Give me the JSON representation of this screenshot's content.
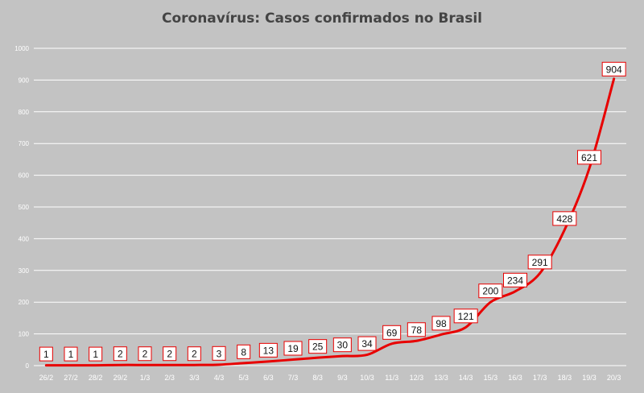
{
  "chart_data": {
    "type": "line",
    "title": "Coronavírus: Casos confirmados no Brasil",
    "xlabel": "",
    "ylabel": "",
    "categories": [
      "26/2",
      "27/2",
      "28/2",
      "29/2",
      "1/3",
      "2/3",
      "3/3",
      "4/3",
      "5/3",
      "6/3",
      "7/3",
      "8/3",
      "9/3",
      "10/3",
      "11/3",
      "12/3",
      "13/3",
      "14/3",
      "15/3",
      "16/3",
      "17/3",
      "18/3",
      "19/3",
      "20/3"
    ],
    "series": [
      {
        "values": [
          1,
          1,
          1,
          2,
          2,
          2,
          2,
          3,
          8,
          13,
          19,
          25,
          30,
          34,
          69,
          78,
          98,
          121,
          200,
          234,
          291,
          428,
          621,
          904
        ]
      }
    ],
    "ylim": [
      0,
      1000
    ],
    "yticks": [
      0,
      100,
      200,
      300,
      400,
      500,
      600,
      700,
      800,
      900,
      1000
    ],
    "grid": true,
    "legend": "none",
    "colors": {
      "background": "#c3c3c3",
      "line": "#e80000",
      "grid": "#ffffff",
      "label_box": "#ffffff",
      "label_border": "#e80000"
    }
  }
}
